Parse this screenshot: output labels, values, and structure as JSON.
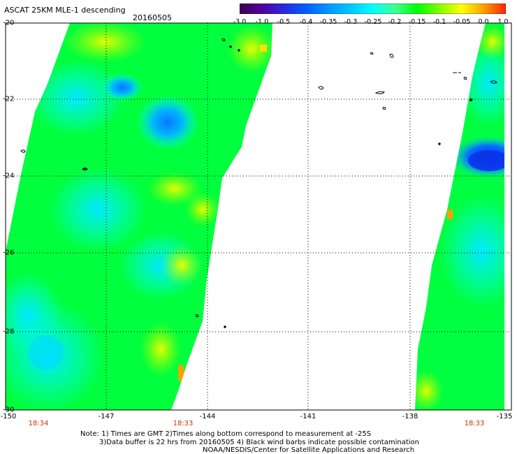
{
  "header": {
    "title": "ASCAT 25KM MLE-1 descending",
    "date": "20160505"
  },
  "colorbar": {
    "ticks": [
      "-3.0",
      "-1.0",
      "-0.5",
      "-0.4",
      "-0.35",
      "-0.3",
      "-0.25",
      "-0.2",
      "-0.15",
      "-0.1",
      "-0.05",
      "0.0",
      "1.0"
    ],
    "colors": [
      "#3c0050",
      "#5000a0",
      "#2a2ae0",
      "#0060ff",
      "#0098ff",
      "#00c8ff",
      "#00ffff",
      "#40ff90",
      "#00ff00",
      "#80ff00",
      "#ffff00",
      "#ffa000",
      "#ff2000"
    ]
  },
  "map": {
    "lat_labels": [
      "-20",
      "-22",
      "-24",
      "-26",
      "-28",
      "-30"
    ],
    "lon_labels": [
      "-150",
      "-147",
      "-144",
      "-141",
      "-138",
      "-135"
    ],
    "time_labels": [
      "18:34",
      "18:33",
      "18:33"
    ]
  },
  "footer": {
    "note_line1": "Note: 1) Times are GMT 2)Times along bottom correspond to measurement at -25S",
    "note_line2": "3)Data buffer is 22 hrs from 20160505 4) Black wind barbs indicate possible contamination",
    "credit": "NOAA/NESDIS/Center for Satellite Applications and Research"
  }
}
